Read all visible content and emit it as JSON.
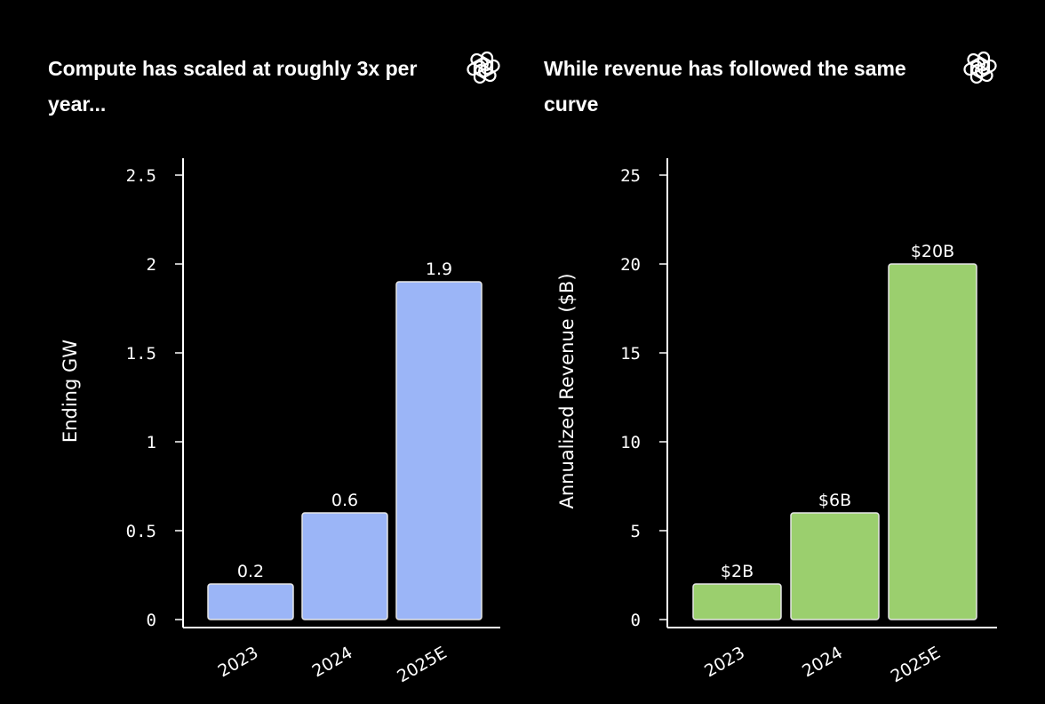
{
  "chart_data": [
    {
      "type": "bar",
      "title": "Compute has scaled at roughly 3x per year...",
      "xlabel": "",
      "ylabel": "Ending GW",
      "categories": [
        "2023",
        "2024",
        "2025E"
      ],
      "values": [
        0.2,
        0.6,
        1.9
      ],
      "data_labels": [
        "0.2",
        "0.6",
        "1.9"
      ],
      "ylim": [
        0,
        2.5
      ],
      "yticks": [
        0,
        0.5,
        1,
        1.5,
        2,
        2.5
      ],
      "ytick_labels": [
        "0",
        "0.5",
        "1",
        "1.5",
        "2",
        "2.5"
      ],
      "grid": false,
      "color": "#9bb5f7",
      "logo": "openai-logo"
    },
    {
      "type": "bar",
      "title": "While revenue has followed the same curve",
      "xlabel": "",
      "ylabel": "Annualized Revenue ($B)",
      "categories": [
        "2023",
        "2024",
        "2025E"
      ],
      "values": [
        2,
        6,
        20
      ],
      "data_labels": [
        "$2B",
        "$6B",
        "$20B"
      ],
      "ylim": [
        0,
        25
      ],
      "yticks": [
        0,
        5,
        10,
        15,
        20,
        25
      ],
      "ytick_labels": [
        "0",
        "5",
        "10",
        "15",
        "20",
        "25"
      ],
      "grid": false,
      "color": "#9bcf6e",
      "logo": "openai-logo"
    }
  ]
}
